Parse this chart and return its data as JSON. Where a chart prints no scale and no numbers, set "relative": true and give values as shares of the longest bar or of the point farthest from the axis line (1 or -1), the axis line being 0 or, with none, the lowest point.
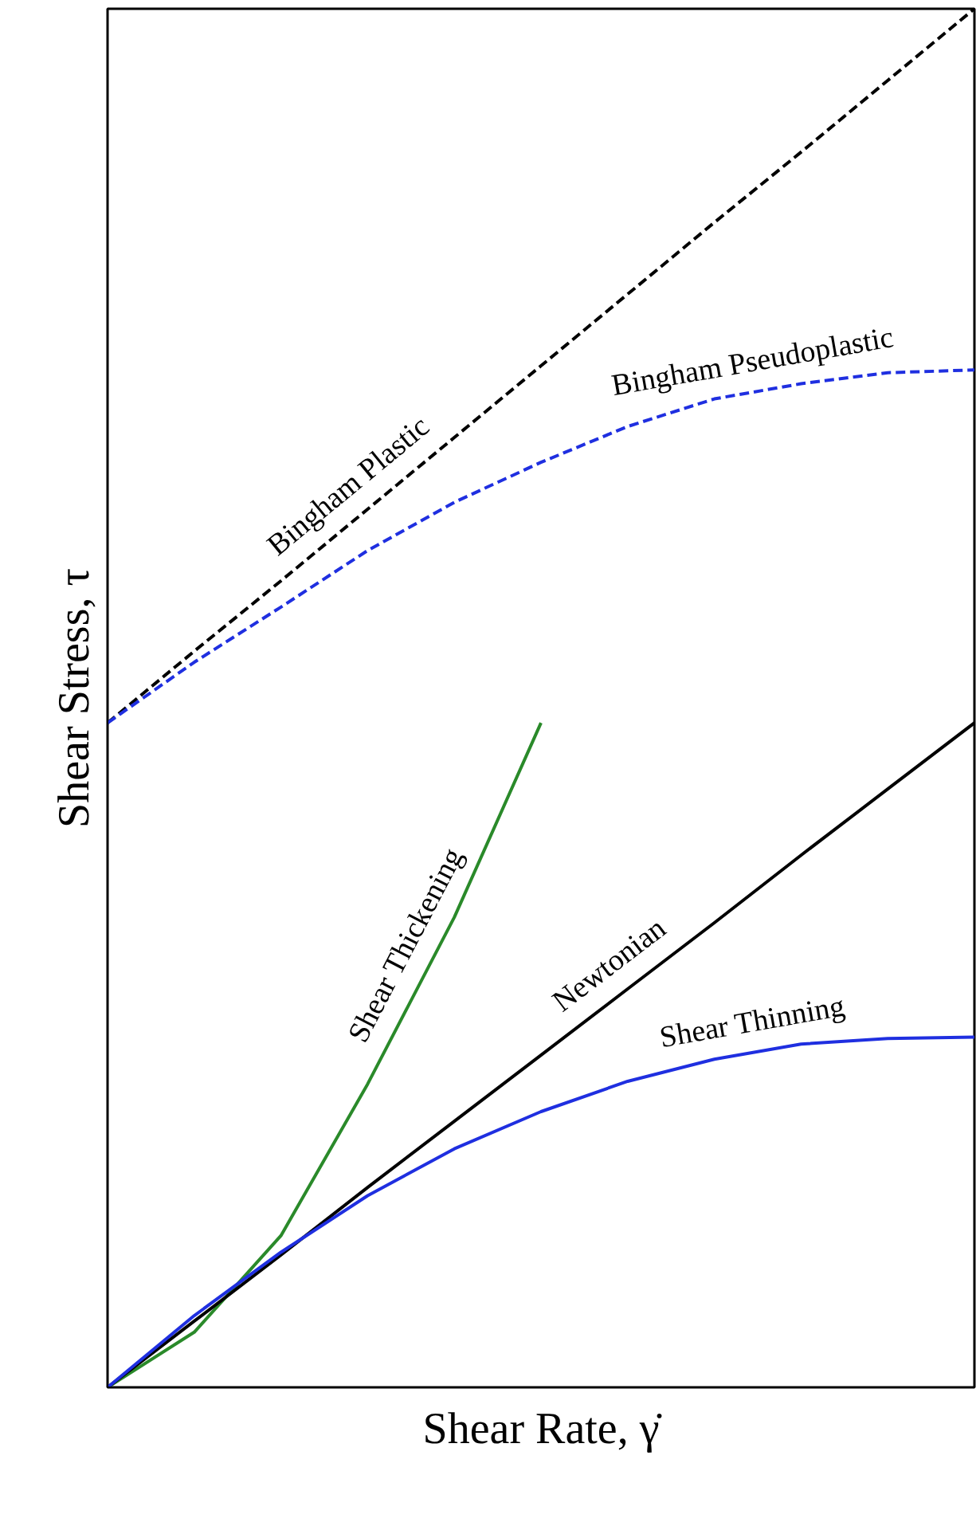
{
  "chart_data": {
    "type": "line",
    "relative": true,
    "xlabel": "Shear Rate, γ̇",
    "ylabel": "Shear Stress, τ",
    "grid": false,
    "marker": "none",
    "categories": [
      null,
      null,
      null,
      null,
      null,
      null,
      null,
      null,
      null,
      null,
      null
    ],
    "series": [
      {
        "name": "Bingham Plastic",
        "color": "#000000",
        "line_style": "dashed",
        "values": [
          0.482,
          0.534,
          0.585,
          0.637,
          0.689,
          0.741,
          0.793,
          0.845,
          0.896,
          0.948,
          1.0
        ]
      },
      {
        "name": "Bingham Pseudoplastic",
        "color": "#1f2fe0",
        "line_style": "dashed",
        "values": [
          0.482,
          0.526,
          0.566,
          0.607,
          0.642,
          0.671,
          0.697,
          0.717,
          0.728,
          0.736,
          0.738
        ]
      },
      {
        "name": "Shear Thickening",
        "color": "#2a8a2a",
        "line_style": "solid",
        "values": [
          0,
          0.04,
          0.11,
          0.22,
          0.341,
          0.482,
          null,
          null,
          null,
          null,
          null
        ]
      },
      {
        "name": "Newtonian",
        "color": "#000000",
        "line_style": "solid",
        "values": [
          0,
          0.048,
          0.096,
          0.145,
          0.193,
          0.241,
          0.289,
          0.337,
          0.386,
          0.434,
          0.482
        ]
      },
      {
        "name": "Shear Thinning",
        "color": "#1f2fe0",
        "line_style": "solid",
        "values": [
          0,
          0.052,
          0.098,
          0.139,
          0.173,
          0.2,
          0.222,
          0.238,
          0.249,
          0.253,
          0.254
        ]
      }
    ]
  }
}
